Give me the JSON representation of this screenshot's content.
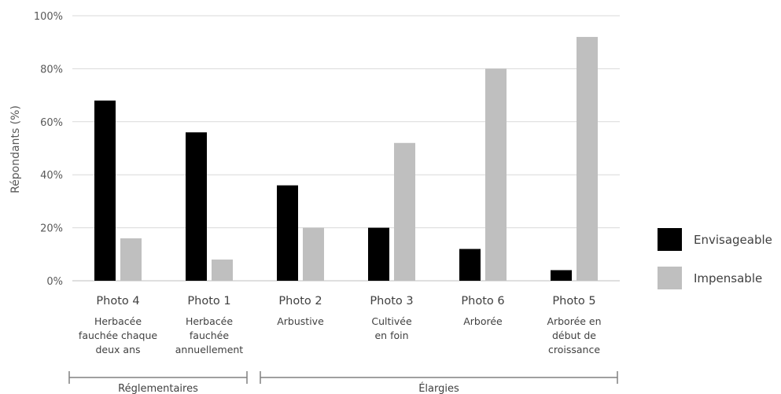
{
  "chart_data": {
    "type": "bar",
    "ylabel": "Répondants (%)",
    "ylim": [
      0,
      100
    ],
    "yticks": [
      "0%",
      "20%",
      "40%",
      "60%",
      "80%",
      "100%"
    ],
    "grid": true,
    "legend_position": "right",
    "categories": [
      "Photo 4",
      "Photo 1",
      "Photo 2",
      "Photo 3",
      "Photo 6",
      "Photo 5"
    ],
    "category_descriptions": [
      [
        "Herbacée",
        "fauchée chaque",
        "deux ans"
      ],
      [
        "Herbacée",
        "fauchée",
        "annuellement"
      ],
      [
        "Arbustive"
      ],
      [
        "Cultivée",
        "en foin"
      ],
      [
        "Arborée"
      ],
      [
        "Arborée en",
        "début de",
        "croissance"
      ]
    ],
    "series": [
      {
        "name": "Envisageable",
        "color": "#000000",
        "values": [
          68,
          56,
          36,
          20,
          12,
          4
        ]
      },
      {
        "name": "Impensable",
        "color": "#bfbfbf",
        "values": [
          16,
          8,
          20,
          52,
          80,
          92
        ]
      }
    ],
    "groups": [
      {
        "label": "Réglementaires",
        "from": 0,
        "to": 1
      },
      {
        "label": "Élargies",
        "from": 2,
        "to": 5
      }
    ]
  }
}
